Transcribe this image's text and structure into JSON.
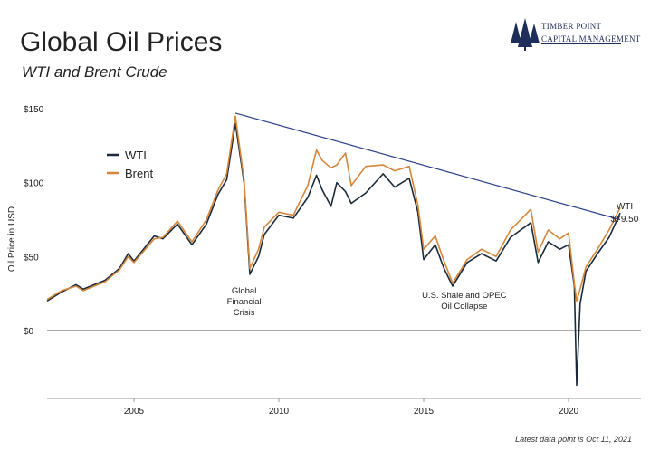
{
  "header": {
    "title": "Global Oil Prices",
    "subtitle": "WTI and Brent Crude",
    "logo_line1": "Timber Point",
    "logo_line2": "Capital Management",
    "footnote": "Latest data point is Oct 11, 2021"
  },
  "colors": {
    "wti": "#1b2a3a",
    "brent": "#d4873a",
    "trend": "#2b3f8c",
    "zero_line": "#555555",
    "logo": "#1f2d5a"
  },
  "icons": {
    "logo": "pine-trees-icon"
  },
  "chart_data": {
    "type": "line",
    "title": "Global Oil Prices",
    "subtitle": "WTI and Brent Crude",
    "xlabel": "",
    "ylabel": "Oil Price in USD",
    "xlim": [
      2002.0,
      2022.5
    ],
    "ylim": [
      -40,
      160
    ],
    "yticks": [
      0,
      50,
      100,
      150
    ],
    "ytick_labels": [
      "$0",
      "$50",
      "$100",
      "$150"
    ],
    "xticks": [
      2005,
      2010,
      2015,
      2020
    ],
    "xtick_labels": [
      "2005",
      "2010",
      "2015",
      "2020"
    ],
    "legend": {
      "placement": "top-left",
      "entries": [
        "WTI",
        "Brent"
      ]
    },
    "series": [
      {
        "name": "WTI",
        "x": [
          2002.0,
          2002.5,
          2003.0,
          2003.25,
          2003.5,
          2004.0,
          2004.5,
          2004.8,
          2005.0,
          2005.7,
          2006.0,
          2006.5,
          2007.0,
          2007.5,
          2007.9,
          2008.2,
          2008.5,
          2008.8,
          2009.0,
          2009.3,
          2009.5,
          2010.0,
          2010.5,
          2011.0,
          2011.3,
          2011.5,
          2011.8,
          2012.0,
          2012.3,
          2012.5,
          2013.0,
          2013.6,
          2014.0,
          2014.5,
          2014.8,
          2015.0,
          2015.4,
          2015.7,
          2016.0,
          2016.5,
          2017.0,
          2017.5,
          2018.0,
          2018.7,
          2018.95,
          2019.3,
          2019.7,
          2020.0,
          2020.2,
          2020.28,
          2020.4,
          2020.6,
          2021.0,
          2021.4,
          2021.78
        ],
        "y": [
          20,
          26,
          31,
          28,
          30,
          34,
          42,
          52,
          47,
          64,
          62,
          72,
          58,
          72,
          92,
          102,
          140,
          100,
          38,
          50,
          65,
          78,
          76,
          90,
          105,
          95,
          84,
          100,
          94,
          86,
          93,
          106,
          97,
          103,
          80,
          48,
          58,
          42,
          30,
          46,
          52,
          47,
          63,
          73,
          46,
          60,
          55,
          58,
          30,
          -37,
          18,
          40,
          52,
          63,
          79.5
        ]
      },
      {
        "name": "Brent",
        "x": [
          2002.0,
          2002.5,
          2003.0,
          2003.25,
          2003.5,
          2004.0,
          2004.5,
          2004.8,
          2005.0,
          2005.7,
          2006.0,
          2006.5,
          2007.0,
          2007.5,
          2007.9,
          2008.2,
          2008.5,
          2008.8,
          2009.0,
          2009.3,
          2009.5,
          2010.0,
          2010.5,
          2011.0,
          2011.3,
          2011.5,
          2011.8,
          2012.0,
          2012.3,
          2012.5,
          2013.0,
          2013.6,
          2014.0,
          2014.5,
          2014.8,
          2015.0,
          2015.4,
          2015.7,
          2016.0,
          2016.5,
          2017.0,
          2017.5,
          2018.0,
          2018.7,
          2018.95,
          2019.3,
          2019.7,
          2020.0,
          2020.2,
          2020.28,
          2020.4,
          2020.6,
          2021.0,
          2021.4,
          2021.78
        ],
        "y": [
          21,
          27,
          30,
          27,
          29,
          33,
          41,
          50,
          46,
          62,
          63,
          74,
          60,
          75,
          95,
          106,
          145,
          102,
          42,
          55,
          70,
          80,
          78,
          98,
          122,
          115,
          110,
          112,
          120,
          98,
          111,
          112,
          108,
          111,
          85,
          55,
          64,
          47,
          32,
          48,
          55,
          50,
          68,
          82,
          53,
          68,
          62,
          66,
          32,
          20,
          28,
          43,
          55,
          68,
          83
        ]
      }
    ],
    "trend_line": {
      "x": [
        2008.5,
        2021.78
      ],
      "y": [
        147,
        75
      ]
    },
    "annotations": [
      {
        "text_lines": [
          "Global",
          "Financial",
          "Crisis"
        ],
        "x": 2008.8,
        "y": 25
      },
      {
        "text_lines": [
          "U.S. Shale and OPEC",
          "Oil Collapse"
        ],
        "x": 2016.4,
        "y": 22
      }
    ],
    "end_label": {
      "series": "WTI",
      "lines": [
        "WTI",
        "$79.50"
      ],
      "x": 2021.78,
      "y": 79.5
    }
  }
}
